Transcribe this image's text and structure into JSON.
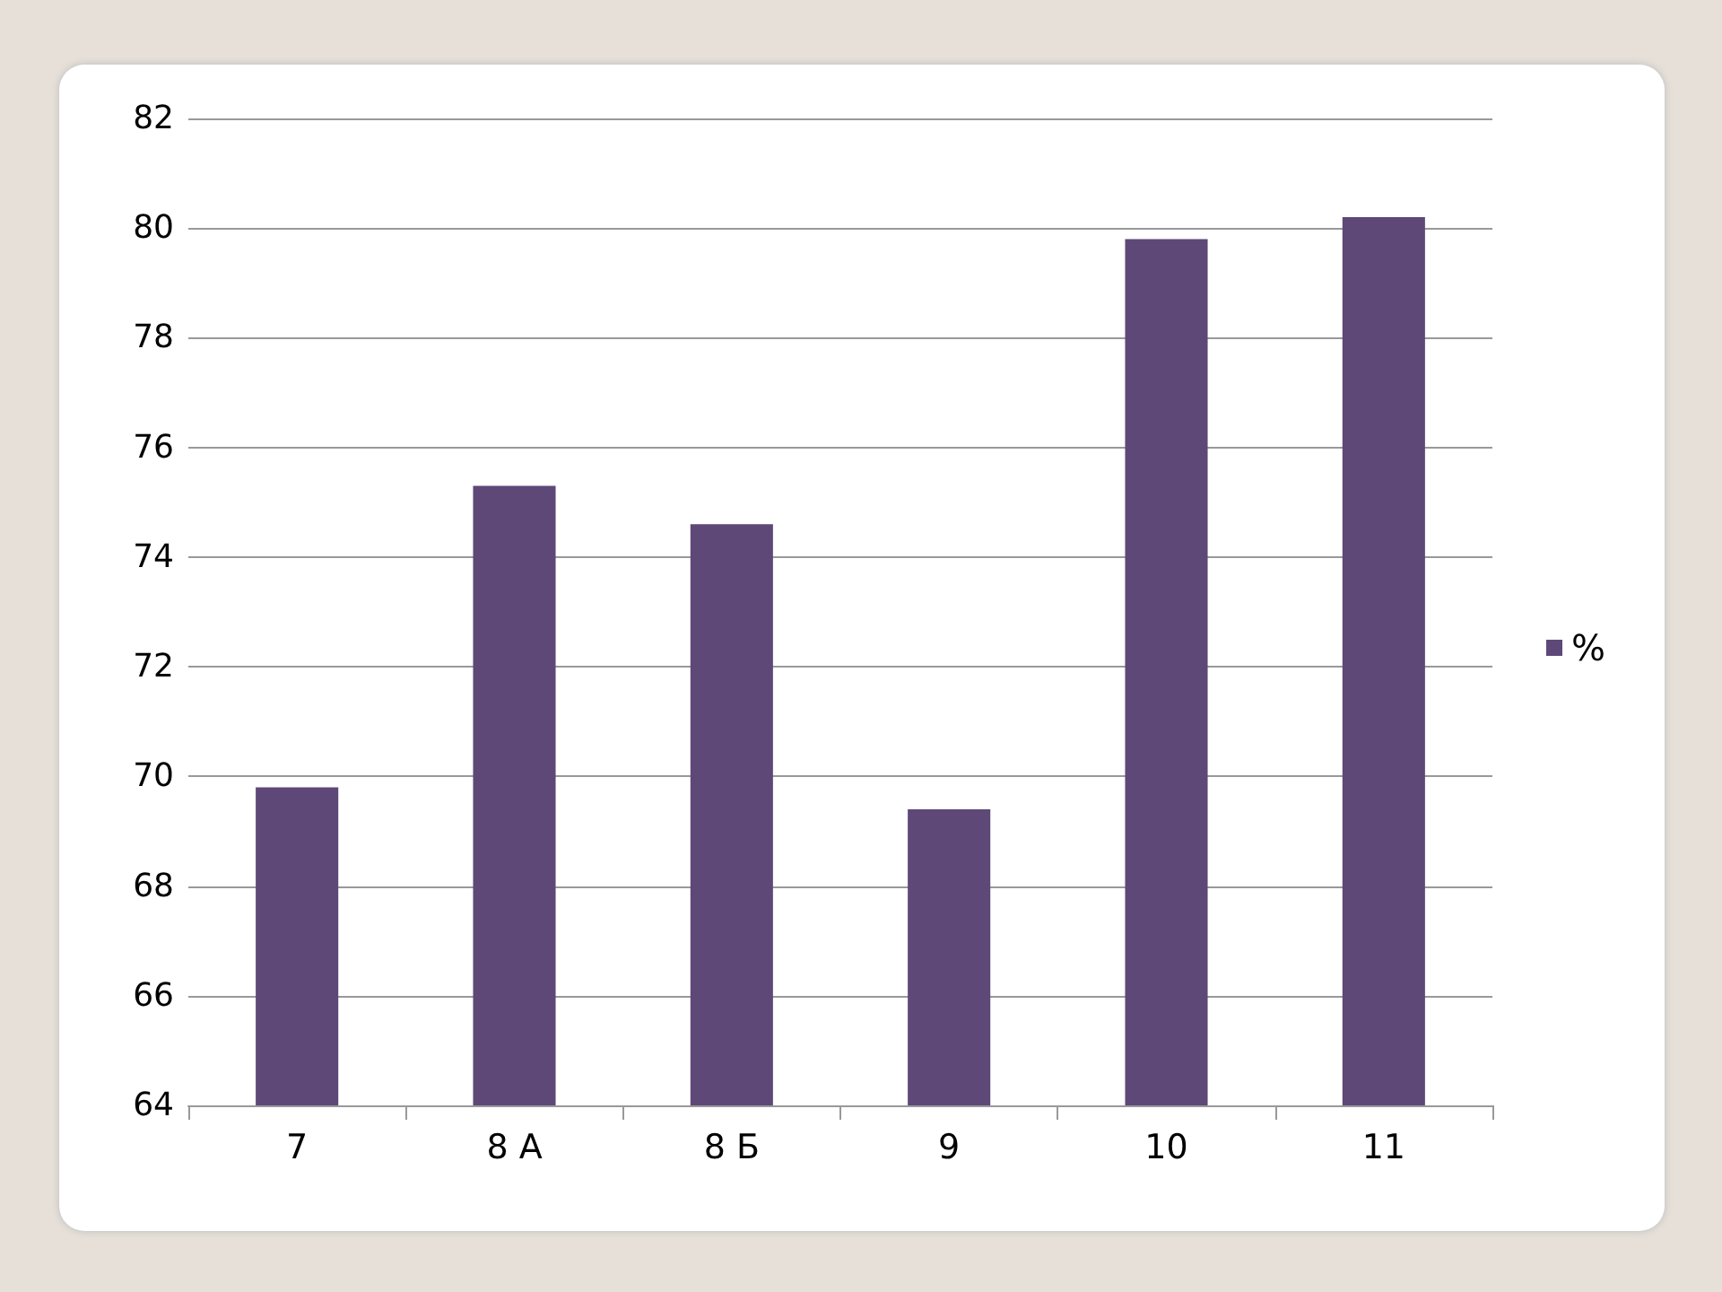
{
  "chart_data": {
    "type": "bar",
    "categories": [
      "7",
      "8 А",
      "8 Б",
      "9",
      "10",
      "11"
    ],
    "series": [
      {
        "name": "%",
        "color": "#5e4878",
        "values": [
          69.8,
          75.3,
          74.6,
          69.4,
          79.8,
          80.2
        ]
      }
    ],
    "ylim": [
      64,
      82
    ],
    "yticks": [
      64,
      66,
      68,
      70,
      72,
      74,
      76,
      78,
      80,
      82
    ],
    "grid": "y",
    "legend": "right"
  }
}
